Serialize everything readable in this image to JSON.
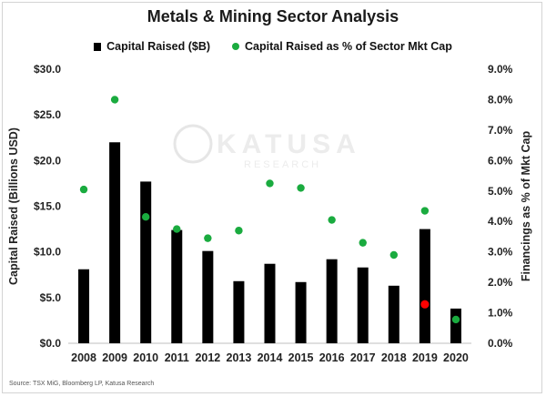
{
  "chart_data": {
    "type": "bar",
    "title": "Metals & Mining Sector Analysis",
    "categories": [
      "2008",
      "2009",
      "2010",
      "2011",
      "2012",
      "2013",
      "2014",
      "2015",
      "2016",
      "2017",
      "2018",
      "2019",
      "2020"
    ],
    "series": [
      {
        "name": "Capital Raised ($B)",
        "kind": "bar",
        "axis": "left",
        "color": "#000000",
        "values": [
          8.1,
          22.0,
          17.7,
          12.4,
          10.1,
          6.8,
          8.7,
          6.7,
          9.2,
          8.3,
          6.3,
          12.5,
          3.8
        ]
      },
      {
        "name": "Capital Raised as % of Sector Mkt Cap",
        "kind": "scatter",
        "axis": "right",
        "color": "#1aab3f",
        "values": [
          5.05,
          8.0,
          4.15,
          3.75,
          3.45,
          3.7,
          5.25,
          5.1,
          4.05,
          3.3,
          2.9,
          4.35,
          0.78
        ]
      }
    ],
    "highlight": {
      "category": "2019",
      "value_pct": 1.28,
      "color": "#ff0000"
    },
    "ylabel": "Capital Raised (Billions USD)",
    "y2label": "Financings as % of Mkt Cap",
    "ylim": [
      0,
      30
    ],
    "y2lim": [
      0,
      9
    ],
    "yticks": [
      "$0.0",
      "$5.0",
      "$10.0",
      "$15.0",
      "$20.0",
      "$25.0",
      "$30.0"
    ],
    "y2ticks": [
      "0.0%",
      "1.0%",
      "2.0%",
      "3.0%",
      "4.0%",
      "5.0%",
      "6.0%",
      "7.0%",
      "8.0%",
      "9.0%"
    ],
    "grid": false,
    "legend_position": "top"
  },
  "watermark": {
    "main": "KATUSA",
    "sub": "RESEARCH"
  },
  "source": "Source: TSX MiG, Bloomberg LP, Katusa Research"
}
